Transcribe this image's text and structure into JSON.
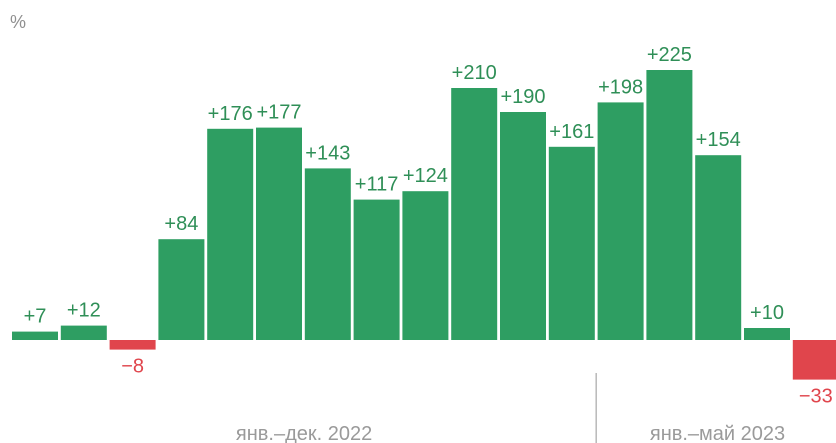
{
  "chart_data": {
    "type": "bar",
    "unit_label": "%",
    "values": [
      7,
      12,
      -8,
      84,
      176,
      177,
      143,
      117,
      124,
      210,
      190,
      161,
      198,
      225,
      154,
      10,
      -33
    ],
    "labels": [
      "+7",
      "+12",
      "−8",
      "+84",
      "+176",
      "+177",
      "+143",
      "+117",
      "+124",
      "+210",
      "+190",
      "+161",
      "+198",
      "+225",
      "+154",
      "+10",
      "−33"
    ],
    "periods": [
      {
        "label": "янв.–дек. 2022"
      },
      {
        "label": "янв.–май 2023"
      }
    ],
    "colors": {
      "positive": "#2e9e62",
      "negative": "#e0454c",
      "positive_text": "#2f8f57",
      "negative_text": "#e0454c",
      "period_text": "#9a9a9a",
      "divider": "#b8b8b8"
    }
  }
}
